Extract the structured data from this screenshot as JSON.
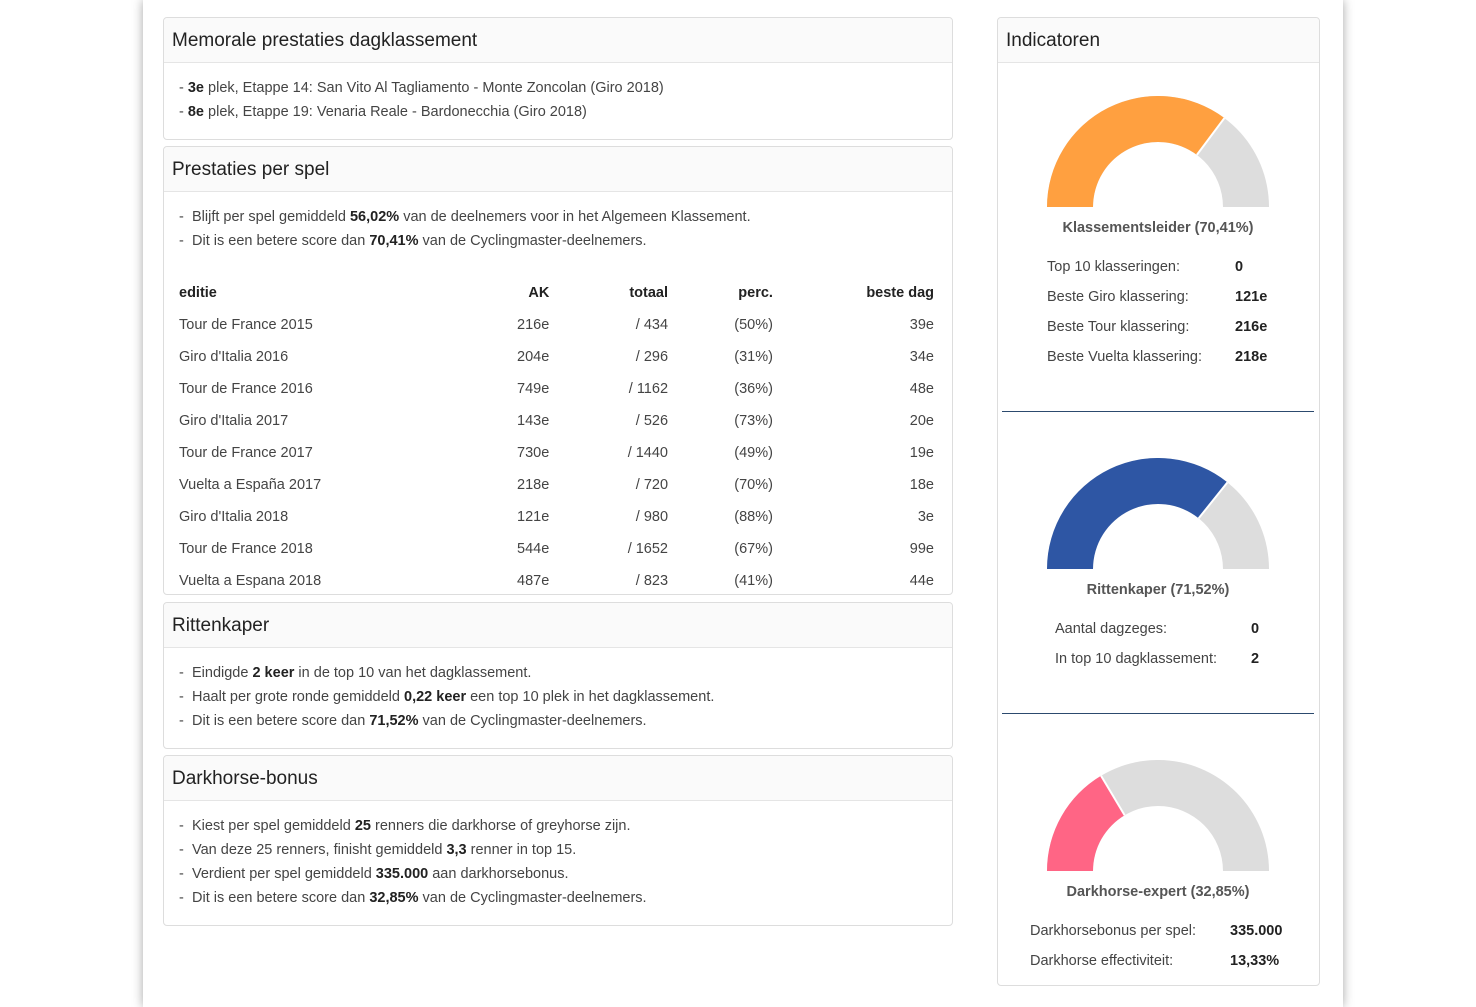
{
  "memorable": {
    "title": "Memorale prestaties dagklassement",
    "items": [
      {
        "place": "3e",
        "text": " plek, Etappe 14: San Vito Al Tagliamento - Monte Zoncolan (Giro 2018)"
      },
      {
        "place": "8e",
        "text": " plek, Etappe 19: Venaria Reale - Bardonecchia (Giro 2018)"
      }
    ]
  },
  "per_game": {
    "title": "Prestaties per spel",
    "line1": {
      "pre": "Blijft per spel gemiddeld ",
      "val": "56,02%",
      "post": " van de deelnemers voor in het Algemeen Klassement."
    },
    "line2": {
      "pre": "Dit is een betere score dan ",
      "val": "70,41%",
      "post": " van de Cyclingmaster-deelnemers."
    },
    "headers": [
      "editie",
      "AK",
      "totaal",
      "perc.",
      "beste dag"
    ],
    "rows": [
      [
        "Tour de France 2015",
        "216e",
        "/ 434",
        "(50%)",
        "39e"
      ],
      [
        "Giro d'Italia 2016",
        "204e",
        "/ 296",
        "(31%)",
        "34e"
      ],
      [
        "Tour de France 2016",
        "749e",
        "/ 1162",
        "(36%)",
        "48e"
      ],
      [
        "Giro d'Italia 2017",
        "143e",
        "/ 526",
        "(73%)",
        "20e"
      ],
      [
        "Tour de France 2017",
        "730e",
        "/ 1440",
        "(49%)",
        "19e"
      ],
      [
        "Vuelta a España 2017",
        "218e",
        "/ 720",
        "(70%)",
        "18e"
      ],
      [
        "Giro d'Italia 2018",
        "121e",
        "/ 980",
        "(88%)",
        "3e"
      ],
      [
        "Tour de France 2018",
        "544e",
        "/ 1652",
        "(67%)",
        "99e"
      ],
      [
        "Vuelta a Espana 2018",
        "487e",
        "/ 823",
        "(41%)",
        "44e"
      ]
    ]
  },
  "rittenkaper": {
    "title": "Rittenkaper",
    "line1": {
      "pre": "Eindigde ",
      "val": "2 keer",
      "post": " in de top 10 van het dagklassement."
    },
    "line2": {
      "pre": "Haalt per grote ronde gemiddeld ",
      "val": "0,22 keer",
      "post": " een top 10 plek in het dagklassement."
    },
    "line3": {
      "pre": "Dit is een betere score dan ",
      "val": "71,52%",
      "post": " van de Cyclingmaster-deelnemers."
    }
  },
  "darkhorse": {
    "title": "Darkhorse-bonus",
    "line1": {
      "pre": "Kiest per spel gemiddeld ",
      "val": "25",
      "post": " renners die darkhorse of greyhorse zijn."
    },
    "line2": {
      "pre": "Van deze 25 renners, finisht gemiddeld ",
      "val": "3,3",
      "post": " renner in top 15."
    },
    "line3": {
      "pre": "Verdient per spel gemiddeld ",
      "val": "335.000",
      "post": " aan darkhorsebonus."
    },
    "line4": {
      "pre": "Dit is een betere score dan ",
      "val": "32,85%",
      "post": " van de Cyclingmaster-deelnemers."
    }
  },
  "indicators": {
    "title": "Indicatoren",
    "gauges": [
      {
        "label": "Klassementsleider (70,41%)",
        "value": 70.41,
        "color": "#ffa040",
        "stats": [
          {
            "k": "Top 10 klasseringen:",
            "v": "0"
          },
          {
            "k": "Beste Giro klassering:",
            "v": "121e"
          },
          {
            "k": "Beste Tour klassering:",
            "v": "216e"
          },
          {
            "k": "Beste Vuelta klassering:",
            "v": "218e"
          }
        ]
      },
      {
        "label": "Rittenkaper (71,52%)",
        "value": 71.52,
        "color": "#2e56a4",
        "stats": [
          {
            "k": "Aantal dagzeges:",
            "v": "0"
          },
          {
            "k": "In top 10 dagklassement:",
            "v": "2"
          }
        ]
      },
      {
        "label": "Darkhorse-expert (32,85%)",
        "value": 32.85,
        "color": "#ff6585",
        "stats": [
          {
            "k": "Darkhorsebonus per spel:",
            "v": "335.000"
          },
          {
            "k": "Darkhorse effectiviteit:",
            "v": "13,33%"
          }
        ]
      }
    ],
    "track_color": "#dddddd"
  }
}
